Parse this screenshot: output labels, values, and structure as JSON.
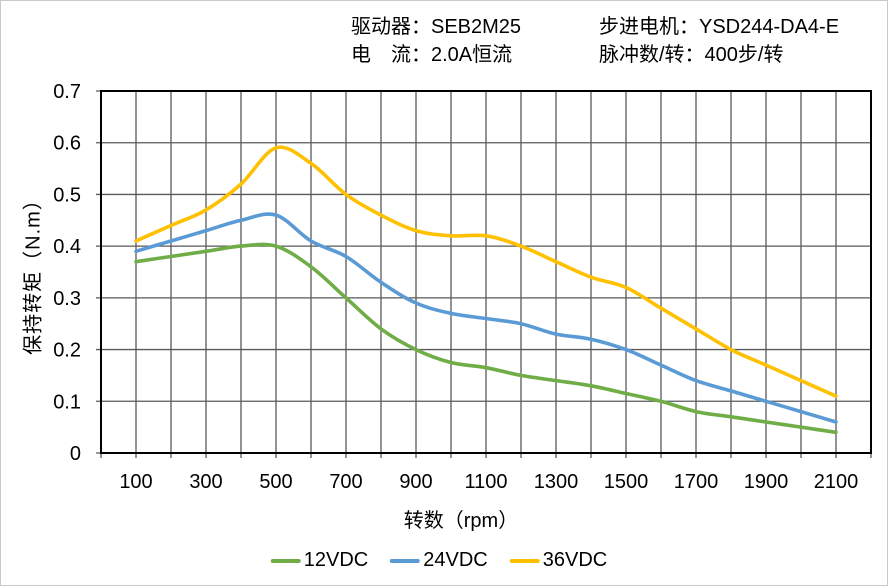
{
  "header": {
    "driver": "驱动器：SEB2M25",
    "current": "电　流：2.0A恒流",
    "motor": "步进电机：YSD244-DA4-E",
    "pulses": "脉冲数/转：400步/转"
  },
  "chart_data": {
    "type": "line",
    "title": "",
    "xlabel": "转数（rpm）",
    "ylabel": "保持转矩（N.m）",
    "xlim": [
      0,
      2200
    ],
    "ylim": [
      0,
      0.7
    ],
    "x_grid_step": 100,
    "y_grid_step": 0.1,
    "grid": true,
    "legend_position": "bottom",
    "grid_color": "#595959",
    "border_color": "#000000",
    "x": [
      100,
      200,
      300,
      400,
      500,
      600,
      700,
      800,
      900,
      1000,
      1100,
      1200,
      1300,
      1400,
      1500,
      1600,
      1700,
      1800,
      1900,
      2000,
      2100
    ],
    "series": [
      {
        "name": "12VDC",
        "color": "#70AD47",
        "values": [
          0.37,
          0.38,
          0.39,
          0.4,
          0.4,
          0.36,
          0.3,
          0.24,
          0.2,
          0.175,
          0.165,
          0.15,
          0.14,
          0.13,
          0.115,
          0.1,
          0.08,
          0.07,
          0.06,
          0.05,
          0.04
        ]
      },
      {
        "name": "24VDC",
        "color": "#5B9BD5",
        "values": [
          0.39,
          0.41,
          0.43,
          0.45,
          0.46,
          0.41,
          0.38,
          0.33,
          0.29,
          0.27,
          0.26,
          0.25,
          0.23,
          0.22,
          0.2,
          0.17,
          0.14,
          0.12,
          0.1,
          0.08,
          0.06
        ]
      },
      {
        "name": "36VDC",
        "color": "#FFC000",
        "values": [
          0.41,
          0.44,
          0.47,
          0.52,
          0.59,
          0.56,
          0.5,
          0.46,
          0.43,
          0.42,
          0.42,
          0.4,
          0.37,
          0.34,
          0.32,
          0.28,
          0.24,
          0.2,
          0.17,
          0.14,
          0.11
        ]
      }
    ],
    "x_tick_labels": [
      "100",
      "300",
      "500",
      "700",
      "900",
      "1100",
      "1300",
      "1500",
      "1700",
      "1900",
      "2100"
    ],
    "y_tick_labels": [
      "0",
      "0.1",
      "0.2",
      "0.3",
      "0.4",
      "0.5",
      "0.6",
      "0.7"
    ]
  }
}
